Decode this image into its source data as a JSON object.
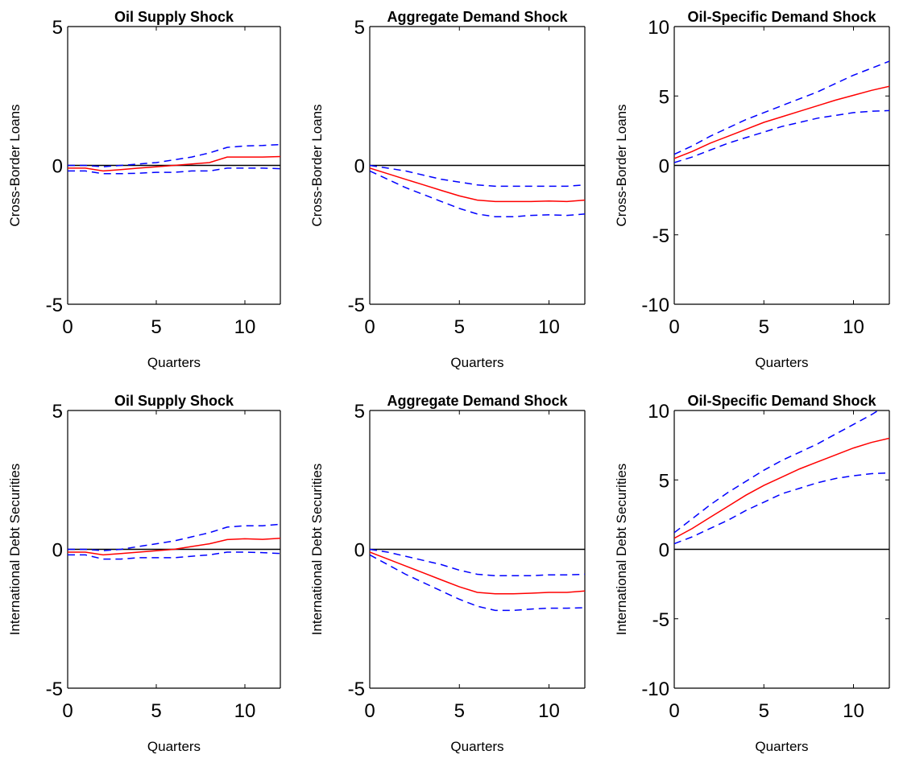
{
  "chart_data": [
    {
      "type": "line",
      "title": "Oil Supply Shock",
      "xlabel": "Quarters",
      "ylabel": "Cross-Border Loans",
      "xlim": [
        0,
        12
      ],
      "ylim": [
        -5,
        5
      ],
      "xticks": [
        "0",
        "5",
        "10"
      ],
      "yticks": [
        "-5",
        "0",
        "5"
      ],
      "x": [
        0,
        1,
        2,
        3,
        4,
        5,
        6,
        7,
        8,
        9,
        10,
        11,
        12
      ],
      "series": [
        {
          "values": [
            -0.1,
            -0.1,
            -0.2,
            -0.15,
            -0.1,
            -0.05,
            0.0,
            0.05,
            0.1,
            0.3,
            0.3,
            0.3,
            0.32
          ],
          "color": "#ff0000",
          "dash": "solid"
        },
        {
          "values": [
            0.0,
            0.0,
            -0.05,
            0.0,
            0.05,
            0.1,
            0.2,
            0.3,
            0.45,
            0.65,
            0.7,
            0.72,
            0.75
          ],
          "color": "#0000ff",
          "dash": "dashed"
        },
        {
          "values": [
            -0.2,
            -0.2,
            -0.3,
            -0.3,
            -0.28,
            -0.25,
            -0.25,
            -0.2,
            -0.2,
            -0.1,
            -0.1,
            -0.1,
            -0.12
          ],
          "color": "#0000ff",
          "dash": "dashed"
        }
      ]
    },
    {
      "type": "line",
      "title": "Aggregate Demand Shock",
      "xlabel": "Quarters",
      "ylabel": "Cross-Border Loans",
      "xlim": [
        0,
        12
      ],
      "ylim": [
        -5,
        5
      ],
      "xticks": [
        "0",
        "5",
        "10"
      ],
      "yticks": [
        "-5",
        "0",
        "5"
      ],
      "x": [
        0,
        1,
        2,
        3,
        4,
        5,
        6,
        7,
        8,
        9,
        10,
        11,
        12
      ],
      "series": [
        {
          "values": [
            -0.1,
            -0.3,
            -0.5,
            -0.7,
            -0.9,
            -1.1,
            -1.25,
            -1.3,
            -1.3,
            -1.3,
            -1.28,
            -1.3,
            -1.25
          ],
          "color": "#ff0000",
          "dash": "solid"
        },
        {
          "values": [
            0.0,
            -0.1,
            -0.2,
            -0.35,
            -0.5,
            -0.6,
            -0.7,
            -0.75,
            -0.75,
            -0.75,
            -0.75,
            -0.75,
            -0.7
          ],
          "color": "#0000ff",
          "dash": "dashed"
        },
        {
          "values": [
            -0.2,
            -0.5,
            -0.8,
            -1.05,
            -1.3,
            -1.55,
            -1.75,
            -1.85,
            -1.85,
            -1.8,
            -1.78,
            -1.8,
            -1.75
          ],
          "color": "#0000ff",
          "dash": "dashed"
        }
      ]
    },
    {
      "type": "line",
      "title": "Oil-Specific Demand Shock",
      "xlabel": "Quarters",
      "ylabel": "Cross-Border Loans",
      "xlim": [
        0,
        12
      ],
      "ylim": [
        -10,
        10
      ],
      "xticks": [
        "0",
        "5",
        "10"
      ],
      "yticks": [
        "-10",
        "-5",
        "0",
        "5",
        "10"
      ],
      "x": [
        0,
        1,
        2,
        3,
        4,
        5,
        6,
        7,
        8,
        9,
        10,
        11,
        12
      ],
      "series": [
        {
          "values": [
            0.5,
            1.0,
            1.6,
            2.1,
            2.6,
            3.1,
            3.5,
            3.9,
            4.3,
            4.7,
            5.05,
            5.4,
            5.7
          ],
          "color": "#ff0000",
          "dash": "solid"
        },
        {
          "values": [
            0.8,
            1.4,
            2.1,
            2.7,
            3.3,
            3.8,
            4.3,
            4.8,
            5.3,
            5.9,
            6.5,
            7.0,
            7.5
          ],
          "color": "#0000ff",
          "dash": "dashed"
        },
        {
          "values": [
            0.2,
            0.6,
            1.1,
            1.6,
            2.0,
            2.4,
            2.8,
            3.1,
            3.4,
            3.6,
            3.8,
            3.9,
            3.95
          ],
          "color": "#0000ff",
          "dash": "dashed"
        }
      ]
    },
    {
      "type": "line",
      "title": "Oil Supply Shock",
      "xlabel": "Quarters",
      "ylabel": "International Debt Securities",
      "xlim": [
        0,
        12
      ],
      "ylim": [
        -5,
        5
      ],
      "xticks": [
        "0",
        "5",
        "10"
      ],
      "yticks": [
        "-5",
        "0",
        "5"
      ],
      "x": [
        0,
        1,
        2,
        3,
        4,
        5,
        6,
        7,
        8,
        9,
        10,
        11,
        12
      ],
      "series": [
        {
          "values": [
            -0.1,
            -0.1,
            -0.2,
            -0.15,
            -0.1,
            -0.05,
            0.0,
            0.1,
            0.2,
            0.35,
            0.38,
            0.36,
            0.4
          ],
          "color": "#ff0000",
          "dash": "solid"
        },
        {
          "values": [
            0.0,
            0.0,
            -0.05,
            0.0,
            0.1,
            0.2,
            0.3,
            0.45,
            0.6,
            0.8,
            0.85,
            0.85,
            0.9
          ],
          "color": "#0000ff",
          "dash": "dashed"
        },
        {
          "values": [
            -0.2,
            -0.2,
            -0.35,
            -0.35,
            -0.3,
            -0.3,
            -0.3,
            -0.25,
            -0.2,
            -0.1,
            -0.1,
            -0.12,
            -0.15
          ],
          "color": "#0000ff",
          "dash": "dashed"
        }
      ]
    },
    {
      "type": "line",
      "title": "Aggregate Demand Shock",
      "xlabel": "Quarters",
      "ylabel": "International Debt Securities",
      "xlim": [
        0,
        12
      ],
      "ylim": [
        -5,
        5
      ],
      "xticks": [
        "0",
        "5",
        "10"
      ],
      "yticks": [
        "-5",
        "0",
        "5"
      ],
      "x": [
        0,
        1,
        2,
        3,
        4,
        5,
        6,
        7,
        8,
        9,
        10,
        11,
        12
      ],
      "series": [
        {
          "values": [
            -0.1,
            -0.35,
            -0.6,
            -0.85,
            -1.1,
            -1.35,
            -1.55,
            -1.6,
            -1.6,
            -1.58,
            -1.55,
            -1.55,
            -1.5
          ],
          "color": "#ff0000",
          "dash": "solid"
        },
        {
          "values": [
            0.0,
            -0.1,
            -0.25,
            -0.4,
            -0.55,
            -0.75,
            -0.9,
            -0.95,
            -0.95,
            -0.95,
            -0.92,
            -0.92,
            -0.9
          ],
          "color": "#0000ff",
          "dash": "dashed"
        },
        {
          "values": [
            -0.2,
            -0.55,
            -0.9,
            -1.2,
            -1.5,
            -1.8,
            -2.05,
            -2.2,
            -2.2,
            -2.15,
            -2.12,
            -2.12,
            -2.1
          ],
          "color": "#0000ff",
          "dash": "dashed"
        }
      ]
    },
    {
      "type": "line",
      "title": "Oil-Specific Demand Shock",
      "xlabel": "Quarters",
      "ylabel": "International Debt Securities",
      "xlim": [
        0,
        12
      ],
      "ylim": [
        -10,
        10
      ],
      "xticks": [
        "0",
        "5",
        "10"
      ],
      "yticks": [
        "-10",
        "-5",
        "0",
        "5",
        "10"
      ],
      "x": [
        0,
        1,
        2,
        3,
        4,
        5,
        6,
        7,
        8,
        9,
        10,
        11,
        12
      ],
      "series": [
        {
          "values": [
            0.8,
            1.5,
            2.3,
            3.1,
            3.9,
            4.6,
            5.2,
            5.8,
            6.3,
            6.8,
            7.3,
            7.7,
            8.0
          ],
          "color": "#ff0000",
          "dash": "solid"
        },
        {
          "values": [
            1.2,
            2.2,
            3.2,
            4.1,
            4.9,
            5.7,
            6.4,
            7.0,
            7.6,
            8.3,
            9.0,
            9.7,
            10.5
          ],
          "color": "#0000ff",
          "dash": "dashed"
        },
        {
          "values": [
            0.4,
            0.9,
            1.5,
            2.1,
            2.8,
            3.4,
            4.0,
            4.4,
            4.8,
            5.1,
            5.3,
            5.45,
            5.5
          ],
          "color": "#0000ff",
          "dash": "dashed"
        }
      ]
    }
  ]
}
